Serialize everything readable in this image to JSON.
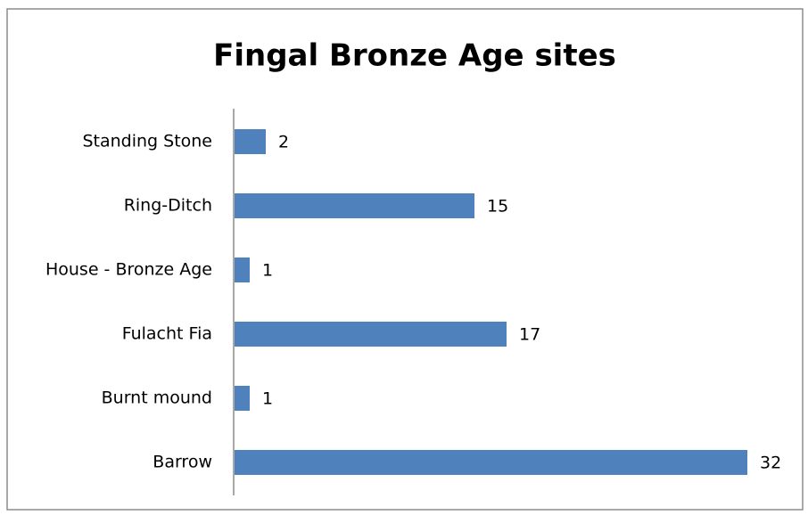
{
  "chart_data": {
    "type": "bar",
    "orientation": "horizontal",
    "title": "Fingal Bronze Age sites",
    "categories": [
      "Standing Stone",
      "Ring-Ditch",
      "House - Bronze Age",
      "Fulacht Fia",
      "Burnt mound",
      "Barrow"
    ],
    "values": [
      2,
      15,
      1,
      17,
      1,
      32
    ],
    "color": "#4f81bd"
  }
}
